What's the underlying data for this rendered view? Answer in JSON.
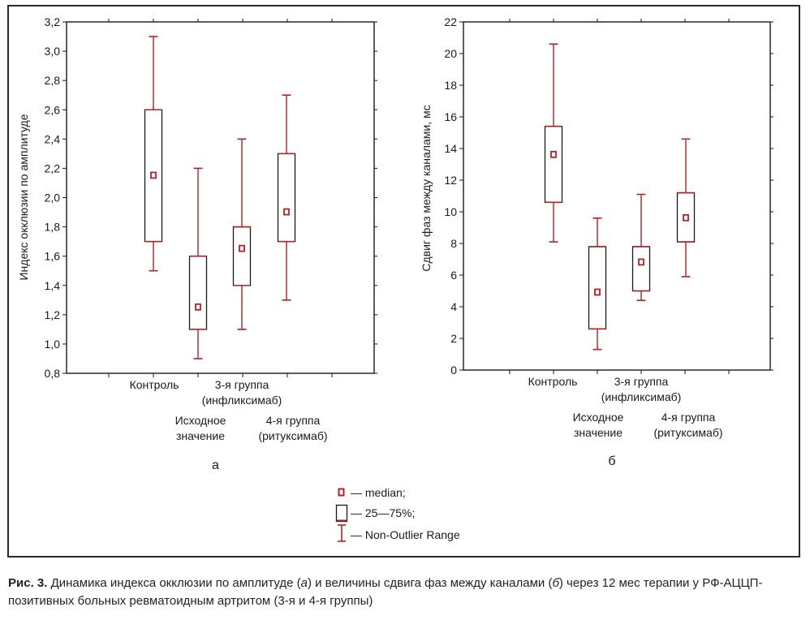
{
  "caption": {
    "label": "Рис. 3.",
    "text_1": " Динамика индекса окклюзии по амплитуде (",
    "a": "а",
    "text_2": ") и величины сдвига фаз между каналами (",
    "b": "б",
    "text_3": ") через 12 мес терапии у РФ-АЦЦП-позитивных больных ревматоидным артритом (3-я и 4-я группы)"
  },
  "legend": {
    "median": "— median;",
    "box": "— 25—75%;",
    "range": "— Non-Outlier Range"
  },
  "colors": {
    "series": "#b22222",
    "axis": "#1a1a1a",
    "frame": "#2a2a2a"
  },
  "chart_data": [
    {
      "type": "boxplot",
      "panel_label": "а",
      "ylabel": "Индекс окклюзии по амплитуде",
      "xlabel": "",
      "ylim": [
        0.8,
        3.2
      ],
      "yticks": [
        "0,8",
        "1,0",
        "1,2",
        "1,4",
        "1,6",
        "1,8",
        "2,0",
        "2,2",
        "2,4",
        "2,6",
        "2,8",
        "3,0",
        "3,2"
      ],
      "category_labels": [
        {
          "lines": [
            "Контроль"
          ],
          "row": 0
        },
        {
          "lines": [
            "Исходное",
            "значение"
          ],
          "row": 1
        },
        {
          "lines": [
            "3-я группа",
            "(инфликсимаб)"
          ],
          "row": 0
        },
        {
          "lines": [
            "4-я группа",
            "(ритуксимаб)"
          ],
          "row": 1
        }
      ],
      "boxes": [
        {
          "median": 2.15,
          "q1": 1.7,
          "q3": 2.6,
          "min": 1.5,
          "max": 3.1
        },
        {
          "median": 1.25,
          "q1": 1.1,
          "q3": 1.6,
          "min": 0.9,
          "max": 2.2
        },
        {
          "median": 1.65,
          "q1": 1.4,
          "q3": 1.8,
          "min": 1.1,
          "max": 2.4
        },
        {
          "median": 1.9,
          "q1": 1.7,
          "q3": 2.3,
          "min": 1.3,
          "max": 2.7
        }
      ],
      "grid": false
    },
    {
      "type": "boxplot",
      "panel_label": "б",
      "ylabel": "Сдвиг фаз между каналами, мс",
      "xlabel": "",
      "ylim": [
        0,
        22
      ],
      "yticks": [
        "0",
        "2",
        "4",
        "6",
        "8",
        "10",
        "12",
        "14",
        "16",
        "18",
        "20",
        "22"
      ],
      "category_labels": [
        {
          "lines": [
            "Контроль"
          ],
          "row": 0
        },
        {
          "lines": [
            "Исходное",
            "значение"
          ],
          "row": 1
        },
        {
          "lines": [
            "3-я группа",
            "(инфликсимаб)"
          ],
          "row": 0
        },
        {
          "lines": [
            "4-я группа",
            "(ритуксимаб)"
          ],
          "row": 1
        }
      ],
      "boxes": [
        {
          "median": 13.6,
          "q1": 10.6,
          "q3": 15.4,
          "min": 8.1,
          "max": 20.6
        },
        {
          "median": 4.9,
          "q1": 2.6,
          "q3": 7.8,
          "min": 1.3,
          "max": 9.6
        },
        {
          "median": 6.8,
          "q1": 5.0,
          "q3": 7.8,
          "min": 4.4,
          "max": 11.1
        },
        {
          "median": 9.6,
          "q1": 8.1,
          "q3": 11.2,
          "min": 5.9,
          "max": 14.6
        }
      ],
      "grid": false
    }
  ]
}
